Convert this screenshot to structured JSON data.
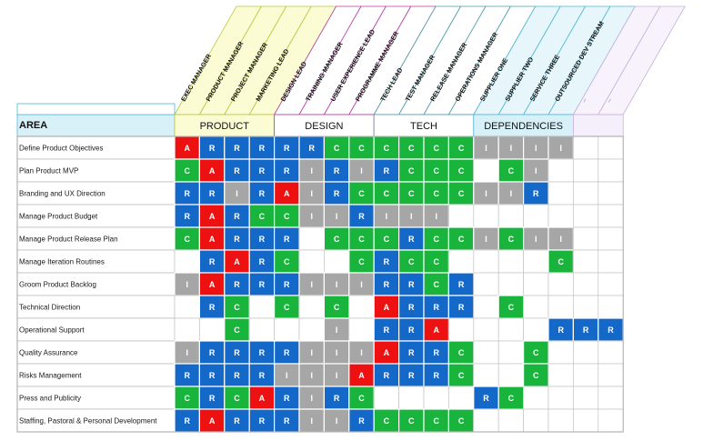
{
  "title": "",
  "area_header": "AREA",
  "roles": [
    "EXEC MANAGER",
    "PRODUCT MANAGER",
    "PROJECT MANAGER",
    "MARKETING LEAD",
    "DESIGN LEAD",
    "TRAINING MANAGER",
    "USER EXPERIENCE LEAD",
    "PROGRAMME MANAGER",
    "TECH LEAD",
    "TEST MANAGER",
    "RELEASE MANAGER",
    "OPERATIONS MANAGER",
    "SUPPLIER ONE",
    "SUPPLIER TWO",
    "SERVICE THREE",
    "OUTSOURCED DEV STREAM",
    "_",
    "_"
  ],
  "groups": [
    {
      "label": "PRODUCT",
      "span": 4,
      "color": "#fbfbd4",
      "line": "#b8c83c"
    },
    {
      "label": "DESIGN",
      "span": 4,
      "color": "#ffffff",
      "line": "#b93aa8"
    },
    {
      "label": "TECH",
      "span": 4,
      "color": "#ffffff",
      "line": "#4a9ea8"
    },
    {
      "label": "DEPENDENCIES",
      "span": 4,
      "color": "#d8f1f8",
      "line": "#4fb8d8"
    },
    {
      "label": "",
      "span": 2,
      "color": "#f5eefb",
      "line": "#c8b0dc"
    }
  ],
  "legend_colors": {
    "A": "#ee1111",
    "R": "#1468c8",
    "C": "#18b43c",
    "I": "#a6a6a6"
  },
  "areas": [
    {
      "label": "Define Product Objectives",
      "cells": [
        "A",
        "R",
        "R",
        "R",
        "R",
        "R",
        "C",
        "C",
        "C",
        "C",
        "C",
        "C",
        "I",
        "I",
        "I",
        "I",
        "",
        ""
      ]
    },
    {
      "label": "Plan Product MVP",
      "cells": [
        "C",
        "A",
        "R",
        "R",
        "R",
        "I",
        "R",
        "I",
        "R",
        "C",
        "C",
        "C",
        "",
        "C",
        "I",
        "",
        "",
        ""
      ]
    },
    {
      "label": "Branding and UX Direction",
      "cells": [
        "R",
        "R",
        "I",
        "R",
        "A",
        "I",
        "R",
        "C",
        "C",
        "C",
        "C",
        "C",
        "I",
        "I",
        "R",
        "",
        "",
        ""
      ]
    },
    {
      "label": "Manage Product Budget",
      "cells": [
        "R",
        "A",
        "R",
        "C",
        "C",
        "I",
        "I",
        "R",
        "I",
        "I",
        "I",
        "",
        "",
        "",
        "",
        "",
        "",
        ""
      ]
    },
    {
      "label": "Manage Product Release Plan",
      "cells": [
        "C",
        "A",
        "R",
        "R",
        "R",
        "",
        "C",
        "C",
        "C",
        "R",
        "C",
        "C",
        "I",
        "C",
        "I",
        "I",
        "",
        ""
      ]
    },
    {
      "label": "Manage Iteration Routines",
      "cells": [
        "",
        "R",
        "A",
        "R",
        "C",
        "",
        "",
        "C",
        "R",
        "C",
        "C",
        "",
        "",
        "",
        "",
        "C",
        "",
        ""
      ]
    },
    {
      "label": "Groom Product Backlog",
      "cells": [
        "I",
        "A",
        "R",
        "R",
        "R",
        "I",
        "I",
        "I",
        "R",
        "R",
        "C",
        "R",
        "",
        "",
        "",
        "",
        "",
        ""
      ]
    },
    {
      "label": "Technical Direction",
      "cells": [
        "",
        "R",
        "C",
        "",
        "C",
        "",
        "C",
        "",
        "A",
        "R",
        "R",
        "R",
        "",
        "C",
        "",
        "",
        "",
        ""
      ]
    },
    {
      "label": "Operational Support",
      "cells": [
        "",
        "",
        "C",
        "",
        "",
        "",
        "I",
        "",
        "R",
        "R",
        "A",
        "",
        "",
        "",
        "",
        "R",
        "R",
        "R"
      ]
    },
    {
      "label": "Quality Assurance",
      "cells": [
        "I",
        "R",
        "R",
        "R",
        "R",
        "I",
        "I",
        "I",
        "A",
        "R",
        "R",
        "C",
        "",
        "",
        "C",
        "",
        "",
        ""
      ]
    },
    {
      "label": "Risks Management",
      "cells": [
        "R",
        "R",
        "R",
        "R",
        "I",
        "I",
        "I",
        "A",
        "R",
        "R",
        "R",
        "C",
        "",
        "",
        "C",
        "",
        "",
        ""
      ]
    },
    {
      "label": "Press and Publicity",
      "cells": [
        "C",
        "R",
        "C",
        "A",
        "R",
        "I",
        "R",
        "C",
        "",
        "",
        "",
        "",
        "R",
        "C",
        "",
        "",
        "",
        ""
      ]
    },
    {
      "label": "Staffing, Pastoral & Personal Development",
      "cells": [
        "R",
        "A",
        "R",
        "R",
        "R",
        "I",
        "I",
        "R",
        "C",
        "C",
        "C",
        "C",
        "",
        "",
        "",
        "",
        "",
        ""
      ]
    }
  ]
}
